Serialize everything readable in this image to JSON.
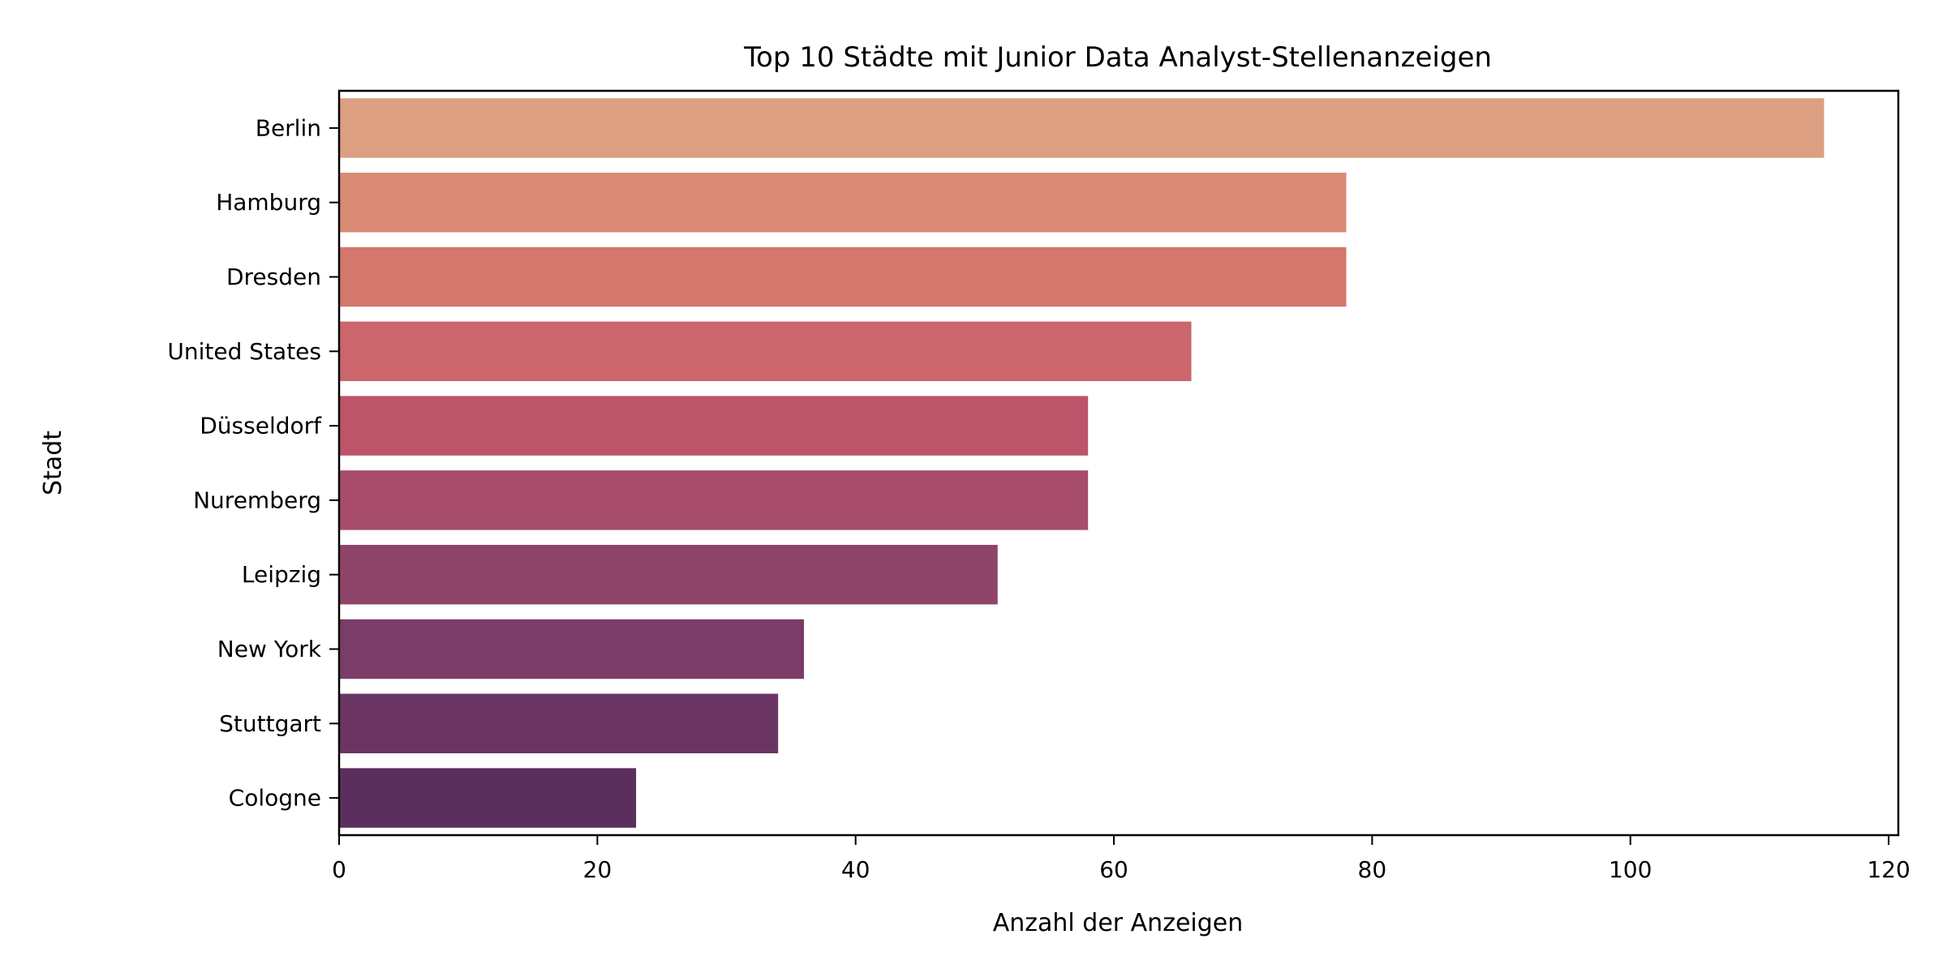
{
  "chart_data": {
    "type": "bar",
    "orientation": "horizontal",
    "title": "Top 10 Städte mit Junior Data Analyst-Stellenanzeigen",
    "xlabel": "Anzahl der Anzeigen",
    "ylabel": "Stadt",
    "categories": [
      "Berlin",
      "Hamburg",
      "Dresden",
      "United States",
      "Düsseldorf",
      "Nuremberg",
      "Leipzig",
      "New York",
      "Stuttgart",
      "Cologne"
    ],
    "values": [
      115,
      78,
      78,
      66,
      58,
      58,
      51,
      36,
      34,
      23
    ],
    "xlim": [
      0,
      120.75
    ],
    "xticks": [
      0,
      20,
      40,
      60,
      80,
      100,
      120
    ],
    "grid": false,
    "legend": "none",
    "colors": [
      "#dd9f82",
      "#d98a74",
      "#d4776d",
      "#cb666c",
      "#bc546a",
      "#a74d6b",
      "#8f456a",
      "#7b3c67",
      "#6b3563",
      "#5a2f5d"
    ]
  }
}
